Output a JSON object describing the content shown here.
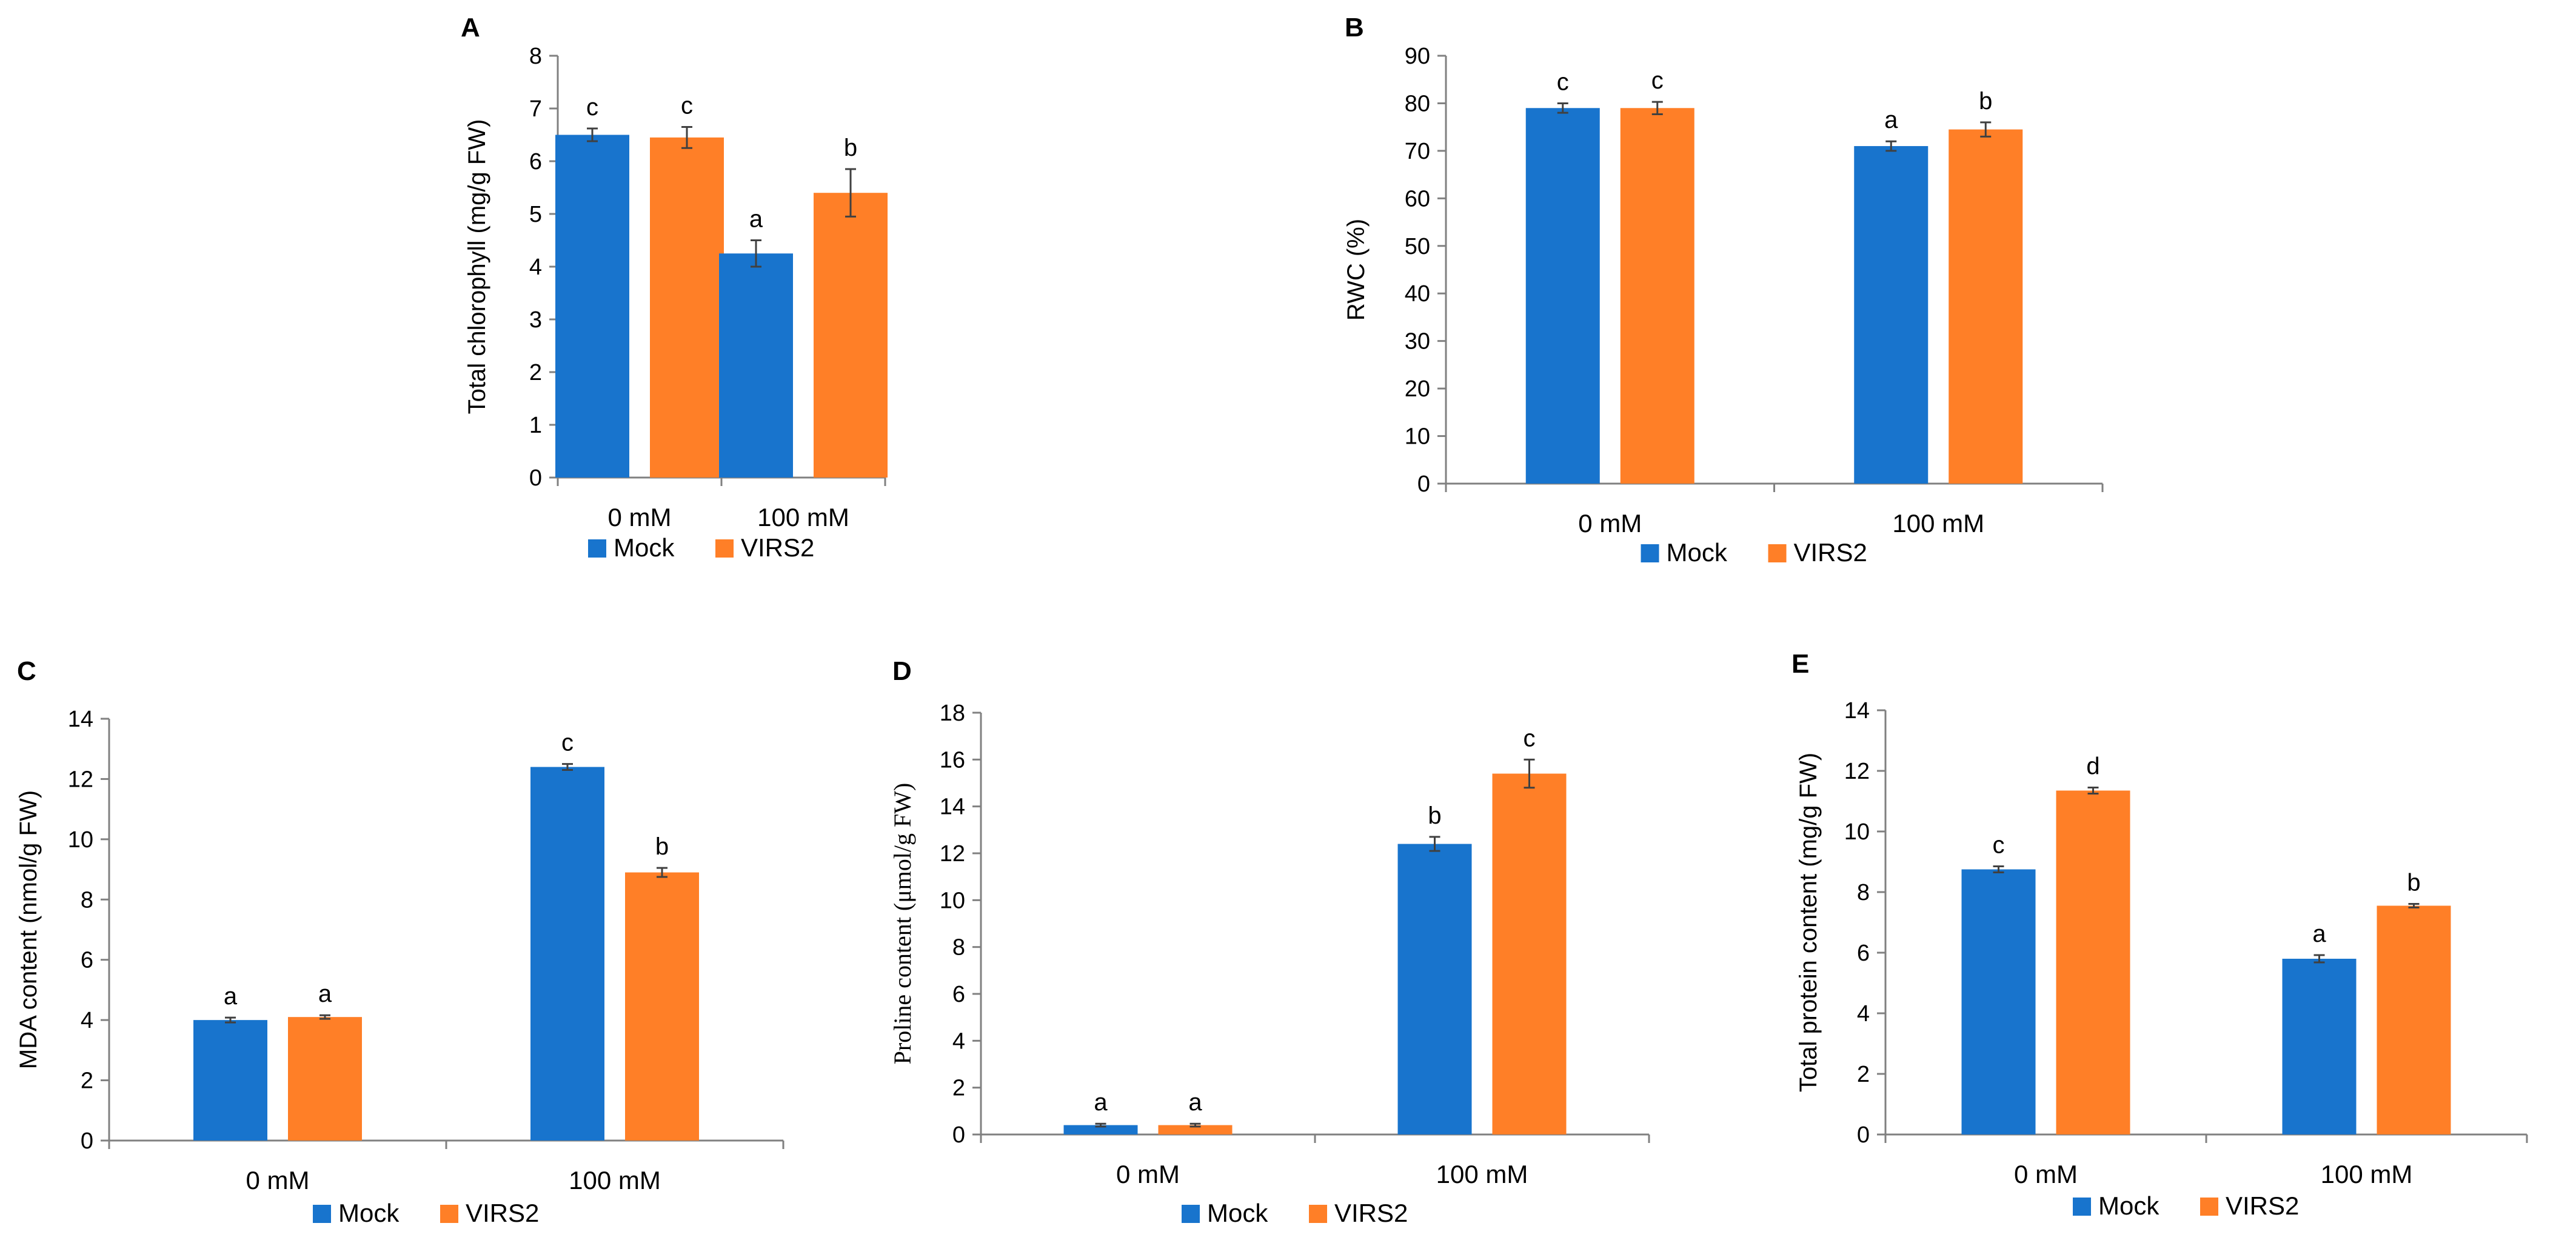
{
  "figure": {
    "series_colors": {
      "Mock": "#1874CD",
      "VIRS2": "#FF7F27"
    },
    "axis_color": "#808080"
  },
  "chart_data": [
    {
      "panel": "A",
      "type": "bar",
      "categories": [
        "0 mM",
        "100 mM"
      ],
      "series": [
        {
          "name": "Mock",
          "values": [
            6.5,
            4.25
          ],
          "errors": [
            0.12,
            0.25
          ],
          "labels": [
            "c",
            "a"
          ]
        },
        {
          "name": "VIRS2",
          "values": [
            6.45,
            5.4
          ],
          "errors": [
            0.2,
            0.45
          ],
          "labels": [
            "c",
            "b"
          ]
        }
      ],
      "ylabel": "Total chlorophyll (mg/g FW)",
      "xlabel": "",
      "ylim": [
        0,
        8
      ],
      "yticks": [
        0,
        1,
        2,
        3,
        4,
        5,
        6,
        7,
        8
      ],
      "legend": [
        "Mock",
        "VIRS2"
      ],
      "legend_position": "bottom-center",
      "grid": false
    },
    {
      "panel": "B",
      "type": "bar",
      "categories": [
        "0 mM",
        "100 mM"
      ],
      "series": [
        {
          "name": "Mock",
          "values": [
            79,
            71
          ],
          "errors": [
            1,
            1
          ],
          "labels": [
            "c",
            "a"
          ]
        },
        {
          "name": "VIRS2",
          "values": [
            79,
            74.5
          ],
          "errors": [
            1.3,
            1.5
          ],
          "labels": [
            "c",
            "b"
          ]
        }
      ],
      "ylabel": "RWC (%)",
      "xlabel": "",
      "ylim": [
        0,
        90
      ],
      "yticks": [
        0,
        10,
        20,
        30,
        40,
        50,
        60,
        70,
        80,
        90
      ],
      "legend": [
        "Mock",
        "VIRS2"
      ],
      "legend_position": "bottom-center",
      "grid": false
    },
    {
      "panel": "C",
      "type": "bar",
      "categories": [
        "0 mM",
        "100 mM"
      ],
      "series": [
        {
          "name": "Mock",
          "values": [
            4.0,
            12.4
          ],
          "errors": [
            0.08,
            0.1
          ],
          "labels": [
            "a",
            "c"
          ]
        },
        {
          "name": "VIRS2",
          "values": [
            4.1,
            8.9
          ],
          "errors": [
            0.06,
            0.15
          ],
          "labels": [
            "a",
            "b"
          ]
        }
      ],
      "ylabel": "MDA content  (nmol/g FW)",
      "xlabel": "",
      "ylim": [
        0,
        14
      ],
      "yticks": [
        0,
        2,
        4,
        6,
        8,
        10,
        12,
        14
      ],
      "legend": [
        "Mock",
        "VIRS2"
      ],
      "legend_position": "bottom-center",
      "grid": false
    },
    {
      "panel": "D",
      "type": "bar",
      "categories": [
        "0 mM",
        "100 mM"
      ],
      "series": [
        {
          "name": "Mock",
          "values": [
            0.4,
            12.4
          ],
          "errors": [
            0.06,
            0.3
          ],
          "labels": [
            "a",
            "b"
          ]
        },
        {
          "name": "VIRS2",
          "values": [
            0.4,
            15.4
          ],
          "errors": [
            0.06,
            0.6
          ],
          "labels": [
            "a",
            "c"
          ]
        }
      ],
      "ylabel": "Proline content  (μmol/g FW)",
      "xlabel": "",
      "ylim": [
        0,
        18
      ],
      "yticks": [
        0,
        2,
        4,
        6,
        8,
        10,
        12,
        14,
        16,
        18
      ],
      "legend": [
        "Mock",
        "VIRS2"
      ],
      "legend_position": "bottom-center",
      "grid": false
    },
    {
      "panel": "E",
      "type": "bar",
      "categories": [
        "0 mM",
        "100 mM"
      ],
      "series": [
        {
          "name": "Mock",
          "values": [
            8.75,
            5.8
          ],
          "errors": [
            0.1,
            0.12
          ],
          "labels": [
            "c",
            "a"
          ]
        },
        {
          "name": "VIRS2",
          "values": [
            11.35,
            7.55
          ],
          "errors": [
            0.1,
            0.06
          ],
          "labels": [
            "d",
            "b"
          ]
        }
      ],
      "ylabel": "Total protein content (mg/g FW)",
      "xlabel": "",
      "ylim": [
        0,
        14
      ],
      "yticks": [
        0,
        2,
        4,
        6,
        8,
        10,
        12,
        14
      ],
      "legend": [
        "Mock",
        "VIRS2"
      ],
      "legend_position": "bottom-center",
      "grid": false
    }
  ]
}
